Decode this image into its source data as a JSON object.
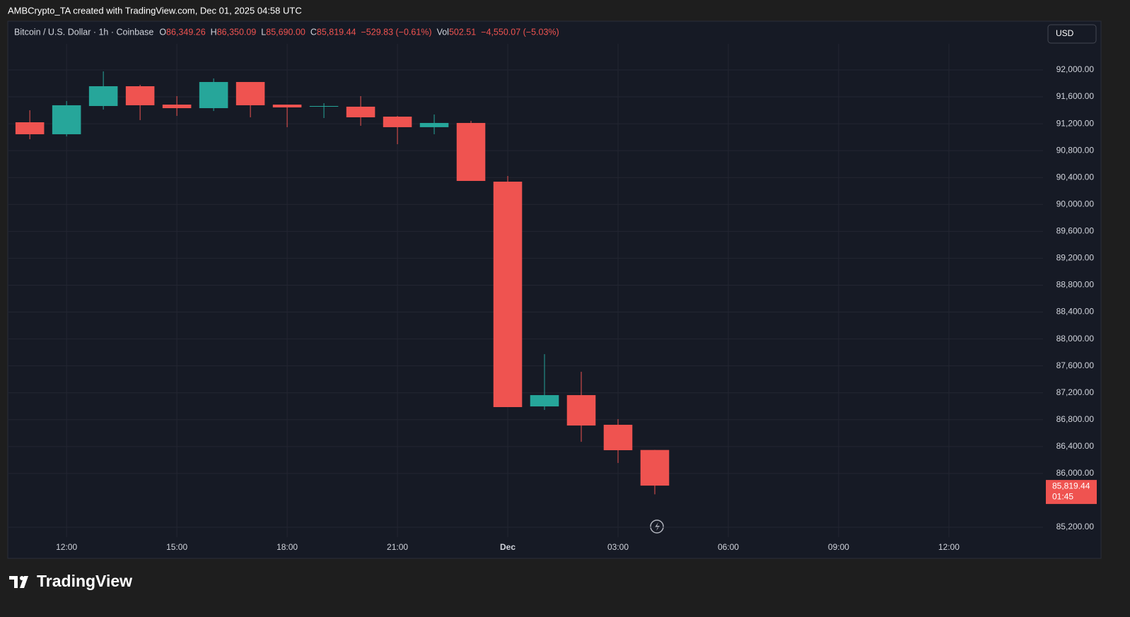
{
  "chart_data": {
    "type": "candlestick",
    "credit": "AMBCrypto_TA created with TradingView.com, Dec 01, 2025 04:58 UTC",
    "symbol": "Bitcoin / U.S. Dollar · 1h · Coinbase",
    "legend": [
      {
        "key": "O",
        "value": "86,349.26"
      },
      {
        "key": "H",
        "value": "86,350.09"
      },
      {
        "key": "L",
        "value": "85,690.00"
      },
      {
        "key": "C",
        "value": "85,819.44"
      },
      {
        "key": "",
        "value": "−529.83 (−0.61%)"
      },
      {
        "key": "Vol",
        "value": "502.51"
      },
      {
        "key": "",
        "value": "−4,550.07 (−5.03%)"
      }
    ],
    "currency": "USD",
    "brand": "TradingView",
    "last_price_label": "85,819.44",
    "countdown": "01:45",
    "up_color": "#26a69a",
    "down_color": "#ef5350",
    "grid": true,
    "x": [
      11,
      12,
      13,
      14,
      15,
      16,
      17,
      18,
      19,
      20,
      21,
      22,
      23,
      24,
      25,
      26,
      27,
      28
    ],
    "open": [
      91222,
      91044,
      91464,
      91758,
      91485,
      91432,
      91821,
      91485,
      91454,
      91454,
      91306,
      91149,
      91212,
      90339,
      86997,
      87165,
      86724,
      86349.26
    ],
    "high": [
      91401,
      91538,
      91979,
      91779,
      91611,
      91874,
      91821,
      91485,
      91506,
      91611,
      91317,
      91338,
      91243,
      90423,
      87774,
      87512,
      86808,
      86350.09
    ],
    "low": [
      90970,
      91012,
      91411,
      91254,
      91317,
      91390,
      91296,
      91149,
      91285,
      91170,
      90896,
      91044,
      90350,
      86987,
      86945,
      86471,
      86156,
      85690
    ],
    "close": [
      91044,
      91475,
      91758,
      91475,
      91432,
      91821,
      91475,
      91443,
      91464,
      91296,
      91149,
      91212,
      90350,
      86987,
      87165,
      86713,
      86346,
      85819.44
    ],
    "xlim": [
      10.42,
      38.56
    ],
    "xticks": [
      {
        "value": 12,
        "label": "12:00"
      },
      {
        "value": 15,
        "label": "15:00"
      },
      {
        "value": 18,
        "label": "18:00"
      },
      {
        "value": 21,
        "label": "21:00"
      },
      {
        "value": 24,
        "label": "Dec"
      },
      {
        "value": 27,
        "label": "03:00"
      },
      {
        "value": 30,
        "label": "06:00"
      },
      {
        "value": 33,
        "label": "09:00"
      },
      {
        "value": 36,
        "label": "12:00"
      }
    ],
    "ylim": [
      84738,
      92725
    ],
    "yticks": [
      {
        "value": 85200,
        "label": "85,200.00"
      },
      {
        "value": 86000,
        "label": "86,000.00"
      },
      {
        "value": 86400,
        "label": "86,400.00"
      },
      {
        "value": 86800,
        "label": "86,800.00"
      },
      {
        "value": 87200,
        "label": "87,200.00"
      },
      {
        "value": 87600,
        "label": "87,600.00"
      },
      {
        "value": 88000,
        "label": "88,000.00"
      },
      {
        "value": 88400,
        "label": "88,400.00"
      },
      {
        "value": 88800,
        "label": "88,800.00"
      },
      {
        "value": 89200,
        "label": "89,200.00"
      },
      {
        "value": 89600,
        "label": "89,600.00"
      },
      {
        "value": 90000,
        "label": "90,000.00"
      },
      {
        "value": 90400,
        "label": "90,400.00"
      },
      {
        "value": 90800,
        "label": "90,800.00"
      },
      {
        "value": 91200,
        "label": "91,200.00"
      },
      {
        "value": 91600,
        "label": "91,600.00"
      },
      {
        "value": 92000,
        "label": "92,000.00"
      }
    ]
  }
}
